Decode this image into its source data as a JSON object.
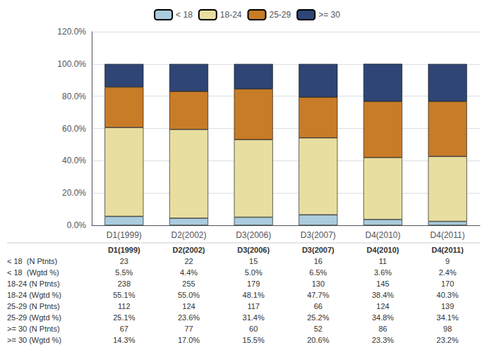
{
  "chart_data": {
    "type": "bar",
    "stacked": true,
    "categories": [
      "D1(1999)",
      "D2(2002)",
      "D3(2006)",
      "D3(2007)",
      "D4(2010)",
      "D4(2011)"
    ],
    "series": [
      {
        "name": "< 18",
        "color": "#aaccdd",
        "values": [
          5.5,
          4.4,
          5.0,
          6.5,
          3.6,
          2.4
        ]
      },
      {
        "name": "18-24",
        "color": "#e8dea0",
        "values": [
          55.1,
          55.0,
          48.1,
          47.7,
          38.4,
          40.3
        ]
      },
      {
        "name": "25-29",
        "color": "#c87c28",
        "values": [
          25.1,
          23.6,
          31.4,
          25.2,
          34.8,
          34.1
        ]
      },
      {
        "name": ">= 30",
        "color": "#2e4575",
        "values": [
          14.3,
          17.0,
          15.5,
          20.6,
          23.3,
          23.2
        ]
      }
    ],
    "ylim": [
      0,
      120
    ],
    "yticks": [
      {
        "value": 0,
        "label": "0.0%"
      },
      {
        "value": 20,
        "label": "20.0%"
      },
      {
        "value": 40,
        "label": "40.0%"
      },
      {
        "value": 60,
        "label": "60.0%"
      },
      {
        "value": 80,
        "label": "80.0%"
      },
      {
        "value": 100,
        "label": "100.0%"
      },
      {
        "value": 120,
        "label": "120.0%"
      }
    ],
    "grid": true,
    "legend": "top",
    "table": {
      "rows": [
        {
          "label": "< 18  (N Ptnts)",
          "values": [
            "23",
            "22",
            "15",
            "16",
            "11",
            "9"
          ]
        },
        {
          "label": "< 18  (Wgtd %)",
          "values": [
            "5.5%",
            "4.4%",
            "5.0%",
            "6.5%",
            "3.6%",
            "2.4%"
          ]
        },
        {
          "label": "18-24 (N Ptnts)",
          "values": [
            "238",
            "255",
            "179",
            "130",
            "145",
            "170"
          ]
        },
        {
          "label": "18-24 (Wgtd %)",
          "values": [
            "55.1%",
            "55.0%",
            "48.1%",
            "47.7%",
            "38.4%",
            "40.3%"
          ]
        },
        {
          "label": "25-29 (N Ptnts)",
          "values": [
            "112",
            "124",
            "117",
            "66",
            "124",
            "139"
          ]
        },
        {
          "label": "25-29 (Wgtd %)",
          "values": [
            "25.1%",
            "23.6%",
            "31.4%",
            "25.2%",
            "34.8%",
            "34.1%"
          ]
        },
        {
          "label": ">= 30 (N Ptnts)",
          "values": [
            "67",
            "77",
            "60",
            "52",
            "86",
            "98"
          ]
        },
        {
          "label": ">= 30 (Wgtd %)",
          "values": [
            "14.3%",
            "17.0%",
            "15.5%",
            "20.6%",
            "23.3%",
            "23.2%"
          ]
        }
      ]
    }
  }
}
